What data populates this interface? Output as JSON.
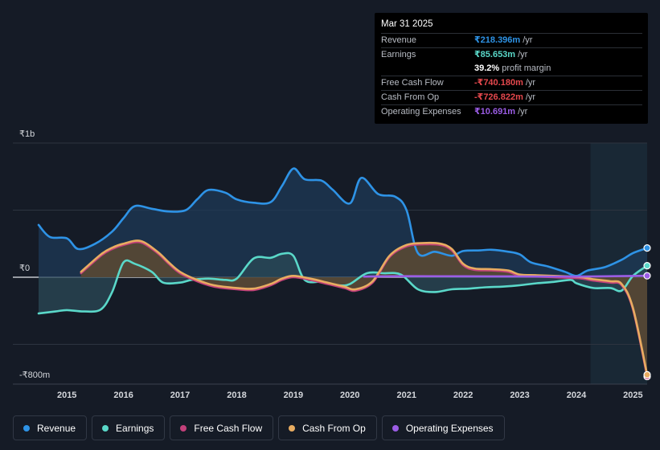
{
  "tooltip": {
    "date": "Mar 31 2025",
    "rows": [
      {
        "label": "Revenue",
        "value": "₹218.396m",
        "suffix": "/yr",
        "color": "#2e93e6"
      },
      {
        "label": "Earnings",
        "value": "₹85.653m",
        "suffix": "/yr",
        "color": "#5ad8c9"
      },
      {
        "label": "",
        "value": "39.2%",
        "suffix": "profit margin",
        "color": "#ffffff"
      },
      {
        "label": "Free Cash Flow",
        "value": "-₹740.180m",
        "suffix": "/yr",
        "color": "#e5484d"
      },
      {
        "label": "Cash From Op",
        "value": "-₹726.822m",
        "suffix": "/yr",
        "color": "#e5484d"
      },
      {
        "label": "Operating Expenses",
        "value": "₹10.691m",
        "suffix": "/yr",
        "color": "#9b5de5"
      }
    ]
  },
  "legend": [
    {
      "label": "Revenue",
      "color": "#2e93e6"
    },
    {
      "label": "Earnings",
      "color": "#5ad8c9"
    },
    {
      "label": "Free Cash Flow",
      "color": "#c2407a"
    },
    {
      "label": "Cash From Op",
      "color": "#e8ac61"
    },
    {
      "label": "Operating Expenses",
      "color": "#9b5de5"
    }
  ],
  "chart_data": {
    "type": "area",
    "title": "",
    "xlabel": "",
    "ylabel": "",
    "unit": "₹ millions",
    "xlim": [
      2014.5,
      2025.25
    ],
    "ylim": [
      -800,
      1000
    ],
    "y_tick_labels": [
      {
        "value": 1000,
        "label": "₹1b"
      },
      {
        "value": 0,
        "label": "₹0"
      },
      {
        "value": -800,
        "label": "-₹800m"
      }
    ],
    "x_ticks": [
      2015,
      2016,
      2017,
      2018,
      2019,
      2020,
      2021,
      2022,
      2023,
      2024,
      2025
    ],
    "x_tick_labels": [
      "2015",
      "2016",
      "2017",
      "2018",
      "2019",
      "2020",
      "2021",
      "2022",
      "2023",
      "2024",
      "2025"
    ],
    "forecast_start": 2024.25,
    "series": [
      {
        "name": "Revenue",
        "color": "#2e93e6",
        "fill": "#1d3a57",
        "points": [
          [
            2014.5,
            390
          ],
          [
            2014.7,
            300
          ],
          [
            2015.0,
            290
          ],
          [
            2015.2,
            210
          ],
          [
            2015.5,
            250
          ],
          [
            2015.8,
            340
          ],
          [
            2016.0,
            440
          ],
          [
            2016.2,
            530
          ],
          [
            2016.5,
            510
          ],
          [
            2016.8,
            490
          ],
          [
            2017.1,
            500
          ],
          [
            2017.3,
            580
          ],
          [
            2017.5,
            650
          ],
          [
            2017.8,
            630
          ],
          [
            2018.0,
            580
          ],
          [
            2018.3,
            555
          ],
          [
            2018.6,
            560
          ],
          [
            2018.8,
            680
          ],
          [
            2019.0,
            810
          ],
          [
            2019.2,
            730
          ],
          [
            2019.5,
            720
          ],
          [
            2019.7,
            650
          ],
          [
            2020.0,
            550
          ],
          [
            2020.2,
            740
          ],
          [
            2020.5,
            620
          ],
          [
            2020.8,
            600
          ],
          [
            2021.0,
            500
          ],
          [
            2021.2,
            180
          ],
          [
            2021.5,
            190
          ],
          [
            2021.8,
            160
          ],
          [
            2022.0,
            195
          ],
          [
            2022.3,
            200
          ],
          [
            2022.5,
            205
          ],
          [
            2022.8,
            190
          ],
          [
            2023.0,
            170
          ],
          [
            2023.2,
            110
          ],
          [
            2023.5,
            80
          ],
          [
            2023.8,
            40
          ],
          [
            2024.0,
            10
          ],
          [
            2024.2,
            50
          ],
          [
            2024.5,
            75
          ],
          [
            2024.8,
            130
          ],
          [
            2025.0,
            180
          ],
          [
            2025.25,
            218
          ]
        ]
      },
      {
        "name": "Earnings",
        "color": "#5ad8c9",
        "fill": "#2b4a57",
        "points": [
          [
            2014.5,
            -270
          ],
          [
            2014.8,
            -255
          ],
          [
            2015.0,
            -245
          ],
          [
            2015.3,
            -255
          ],
          [
            2015.6,
            -240
          ],
          [
            2015.8,
            -110
          ],
          [
            2016.0,
            110
          ],
          [
            2016.2,
            100
          ],
          [
            2016.5,
            40
          ],
          [
            2016.7,
            -40
          ],
          [
            2017.0,
            -40
          ],
          [
            2017.2,
            -20
          ],
          [
            2017.5,
            -10
          ],
          [
            2017.8,
            -20
          ],
          [
            2018.0,
            -10
          ],
          [
            2018.3,
            140
          ],
          [
            2018.6,
            145
          ],
          [
            2018.8,
            175
          ],
          [
            2019.0,
            160
          ],
          [
            2019.2,
            -20
          ],
          [
            2019.5,
            -35
          ],
          [
            2019.8,
            -60
          ],
          [
            2020.0,
            -50
          ],
          [
            2020.3,
            30
          ],
          [
            2020.6,
            30
          ],
          [
            2020.9,
            20
          ],
          [
            2021.2,
            -90
          ],
          [
            2021.5,
            -110
          ],
          [
            2021.8,
            -90
          ],
          [
            2022.1,
            -85
          ],
          [
            2022.4,
            -75
          ],
          [
            2022.7,
            -70
          ],
          [
            2023.0,
            -60
          ],
          [
            2023.3,
            -45
          ],
          [
            2023.6,
            -35
          ],
          [
            2023.9,
            -20
          ],
          [
            2024.0,
            -45
          ],
          [
            2024.3,
            -80
          ],
          [
            2024.6,
            -80
          ],
          [
            2024.8,
            -100
          ],
          [
            2025.0,
            10
          ],
          [
            2025.25,
            86
          ]
        ]
      },
      {
        "name": "Free Cash Flow",
        "color": "#c2407a",
        "fill": "#4a2236",
        "points": [
          [
            2015.25,
            30
          ],
          [
            2015.6,
            160
          ],
          [
            2015.8,
            210
          ],
          [
            2016.0,
            240
          ],
          [
            2016.3,
            260
          ],
          [
            2016.6,
            180
          ],
          [
            2016.8,
            100
          ],
          [
            2017.0,
            30
          ],
          [
            2017.3,
            -30
          ],
          [
            2017.6,
            -70
          ],
          [
            2018.0,
            -90
          ],
          [
            2018.3,
            -95
          ],
          [
            2018.6,
            -60
          ],
          [
            2018.8,
            -20
          ],
          [
            2019.0,
            0
          ],
          [
            2019.3,
            -20
          ],
          [
            2019.6,
            -50
          ],
          [
            2019.9,
            -80
          ],
          [
            2020.1,
            -100
          ],
          [
            2020.4,
            -40
          ],
          [
            2020.7,
            150
          ],
          [
            2021.0,
            230
          ],
          [
            2021.3,
            245
          ],
          [
            2021.6,
            240
          ],
          [
            2021.8,
            200
          ],
          [
            2022.0,
            90
          ],
          [
            2022.2,
            55
          ],
          [
            2022.5,
            50
          ],
          [
            2022.8,
            40
          ],
          [
            2023.0,
            10
          ],
          [
            2023.3,
            5
          ],
          [
            2023.6,
            0
          ],
          [
            2023.9,
            -5
          ],
          [
            2024.1,
            -10
          ],
          [
            2024.3,
            -25
          ],
          [
            2024.6,
            -40
          ],
          [
            2024.8,
            -60
          ],
          [
            2025.0,
            -240
          ],
          [
            2025.25,
            -740
          ]
        ]
      },
      {
        "name": "Cash From Op",
        "color": "#e8ac61",
        "fill": "#5a5236",
        "points": [
          [
            2015.25,
            40
          ],
          [
            2015.6,
            170
          ],
          [
            2015.8,
            220
          ],
          [
            2016.0,
            250
          ],
          [
            2016.3,
            270
          ],
          [
            2016.6,
            190
          ],
          [
            2016.8,
            110
          ],
          [
            2017.0,
            40
          ],
          [
            2017.3,
            -20
          ],
          [
            2017.6,
            -60
          ],
          [
            2018.0,
            -80
          ],
          [
            2018.3,
            -85
          ],
          [
            2018.6,
            -50
          ],
          [
            2018.8,
            -10
          ],
          [
            2019.0,
            10
          ],
          [
            2019.3,
            -10
          ],
          [
            2019.6,
            -40
          ],
          [
            2019.9,
            -70
          ],
          [
            2020.1,
            -90
          ],
          [
            2020.4,
            -30
          ],
          [
            2020.7,
            160
          ],
          [
            2021.0,
            240
          ],
          [
            2021.3,
            255
          ],
          [
            2021.6,
            250
          ],
          [
            2021.8,
            210
          ],
          [
            2022.0,
            100
          ],
          [
            2022.2,
            65
          ],
          [
            2022.5,
            60
          ],
          [
            2022.8,
            50
          ],
          [
            2023.0,
            20
          ],
          [
            2023.3,
            15
          ],
          [
            2023.6,
            10
          ],
          [
            2023.9,
            5
          ],
          [
            2024.1,
            0
          ],
          [
            2024.3,
            -15
          ],
          [
            2024.6,
            -30
          ],
          [
            2024.8,
            -50
          ],
          [
            2025.0,
            -230
          ],
          [
            2025.25,
            -727
          ]
        ]
      },
      {
        "name": "Operating Expenses",
        "color": "#9b5de5",
        "fill": "none",
        "points": [
          [
            2020.25,
            5
          ],
          [
            2021.0,
            8
          ],
          [
            2022.0,
            7
          ],
          [
            2023.0,
            6
          ],
          [
            2024.0,
            5
          ],
          [
            2025.25,
            11
          ]
        ]
      }
    ]
  }
}
